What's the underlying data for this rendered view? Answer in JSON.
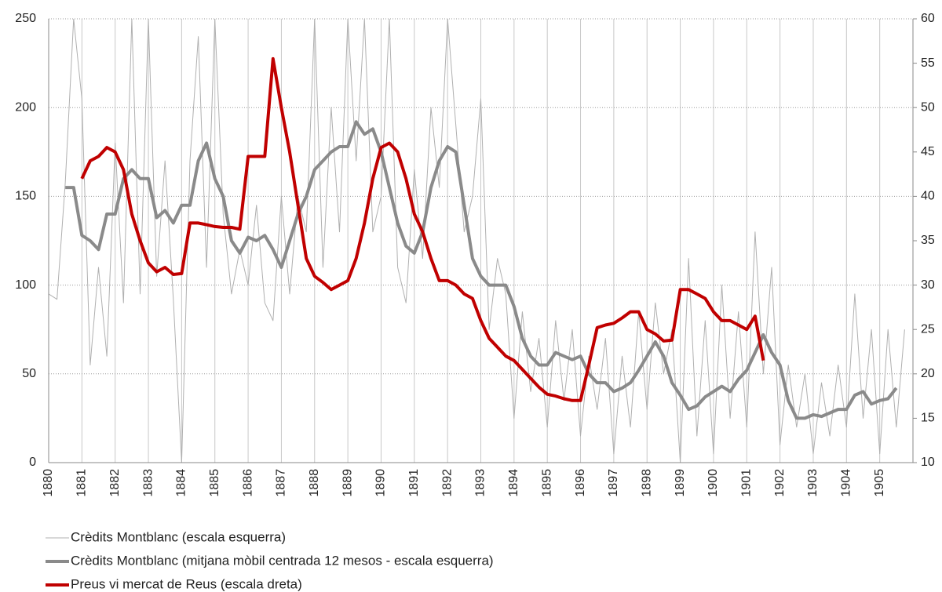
{
  "chart_data": {
    "type": "line",
    "x": [
      1880,
      1880.25,
      1880.5,
      1880.75,
      1881,
      1881.25,
      1881.5,
      1881.75,
      1882,
      1882.25,
      1882.5,
      1882.75,
      1883,
      1883.25,
      1883.5,
      1883.75,
      1884,
      1884.25,
      1884.5,
      1884.75,
      1885,
      1885.25,
      1885.5,
      1885.75,
      1886,
      1886.25,
      1886.5,
      1886.75,
      1887,
      1887.25,
      1887.5,
      1887.75,
      1888,
      1888.25,
      1888.5,
      1888.75,
      1889,
      1889.25,
      1889.5,
      1889.75,
      1890,
      1890.25,
      1890.5,
      1890.75,
      1891,
      1891.25,
      1891.5,
      1891.75,
      1892,
      1892.25,
      1892.5,
      1892.75,
      1893,
      1893.25,
      1893.5,
      1893.75,
      1894,
      1894.25,
      1894.5,
      1894.75,
      1895,
      1895.25,
      1895.5,
      1895.75,
      1896,
      1896.25,
      1896.5,
      1896.75,
      1897,
      1897.25,
      1897.5,
      1897.75,
      1898,
      1898.25,
      1898.5,
      1898.75,
      1899,
      1899.25,
      1899.5,
      1899.75,
      1900,
      1900.25,
      1900.5,
      1900.75,
      1901,
      1901.25,
      1901.5,
      1901.75,
      1902,
      1902.25,
      1902.5,
      1902.75,
      1903,
      1903.25,
      1903.5,
      1903.75,
      1904,
      1904.25,
      1904.5,
      1904.75,
      1905,
      1905.25,
      1905.5,
      1905.75
    ],
    "xlim": [
      1880,
      1906
    ],
    "xticks": [
      1880,
      1881,
      1882,
      1883,
      1884,
      1885,
      1886,
      1887,
      1888,
      1889,
      1890,
      1891,
      1892,
      1893,
      1894,
      1895,
      1896,
      1897,
      1898,
      1899,
      1900,
      1901,
      1902,
      1903,
      1904,
      1905
    ],
    "ylim": [
      0,
      250
    ],
    "yticks": [
      0,
      50,
      100,
      150,
      200,
      250
    ],
    "y2lim": [
      10,
      60
    ],
    "y2ticks": [
      10,
      15,
      20,
      25,
      30,
      35,
      40,
      45,
      50,
      55,
      60
    ],
    "grid": true,
    "legend": "bottom",
    "series": [
      {
        "name": "Crèdits Montblanc (escala esquerra)",
        "color": "#b0b0b0",
        "width": 1,
        "values": [
          95,
          92,
          158,
          250,
          205,
          55,
          110,
          60,
          180,
          90,
          250,
          95,
          250,
          105,
          170,
          92,
          0,
          170,
          240,
          110,
          250,
          140,
          95,
          120,
          100,
          145,
          90,
          80,
          150,
          95,
          150,
          130,
          250,
          110,
          200,
          130,
          250,
          170,
          250,
          130,
          150,
          250,
          110,
          90,
          165,
          115,
          200,
          155,
          250,
          190,
          130,
          150,
          205,
          75,
          115,
          95,
          25,
          85,
          40,
          70,
          20,
          80,
          35,
          75,
          15,
          60,
          30,
          70,
          5,
          60,
          20,
          85,
          30,
          90,
          50,
          75,
          0,
          115,
          15,
          80,
          5,
          100,
          25,
          85,
          20,
          130,
          50,
          110,
          10,
          55,
          20,
          50,
          5,
          45,
          15,
          55,
          20,
          95,
          25,
          75,
          5,
          75,
          20,
          75
        ]
      },
      {
        "name": "Crèdits Montblanc (mitjana mòbil centrada 12 mesos - escala esquerra)",
        "color": "#8a8a8a",
        "width": 4,
        "values": [
          null,
          null,
          155,
          155,
          128,
          125,
          120,
          140,
          140,
          160,
          165,
          160,
          160,
          138,
          142,
          135,
          145,
          145,
          170,
          180,
          160,
          150,
          125,
          118,
          127,
          125,
          128,
          120,
          110,
          125,
          140,
          150,
          165,
          170,
          175,
          178,
          178,
          192,
          185,
          188,
          175,
          155,
          135,
          122,
          118,
          130,
          155,
          170,
          178,
          175,
          145,
          115,
          105,
          100,
          100,
          100,
          88,
          70,
          60,
          55,
          55,
          62,
          60,
          58,
          60,
          50,
          45,
          45,
          40,
          42,
          45,
          52,
          60,
          68,
          60,
          45,
          38,
          30,
          32,
          37,
          40,
          43,
          40,
          47,
          52,
          62,
          72,
          62,
          55,
          35,
          25,
          25,
          27,
          26,
          28,
          30,
          30,
          38,
          40,
          33,
          35,
          36,
          42,
          null
        ]
      },
      {
        "name": "Preus vi mercat de Reus (escala dreta)",
        "color": "#c00000",
        "width": 4,
        "axis": "y2",
        "values": [
          null,
          null,
          null,
          null,
          42,
          44,
          44.5,
          45.5,
          45,
          43,
          38,
          35,
          32.5,
          31.5,
          32,
          31.2,
          31.3,
          37,
          37,
          36.8,
          36.6,
          36.5,
          36.5,
          36.3,
          44.5,
          44.5,
          44.5,
          55.5,
          50,
          45,
          39,
          33,
          31,
          30.3,
          29.5,
          30,
          30.5,
          33,
          37,
          42,
          45.5,
          46,
          45,
          42,
          38,
          36,
          33,
          30.5,
          30.5,
          30,
          29,
          28.5,
          26,
          24,
          23,
          22,
          21.5,
          20.5,
          19.5,
          18.5,
          17.7,
          17.5,
          17.2,
          17,
          17,
          21,
          25.2,
          25.5,
          25.7,
          26.3,
          27,
          27,
          25,
          24.5,
          23.7,
          23.8,
          29.5,
          29.5,
          29,
          28.5,
          27,
          26,
          26,
          25.5,
          25,
          26.5,
          21.5,
          null,
          null,
          null,
          null,
          null,
          null,
          null,
          null,
          null,
          null,
          null,
          null,
          null,
          null,
          null,
          null,
          null
        ]
      }
    ]
  }
}
